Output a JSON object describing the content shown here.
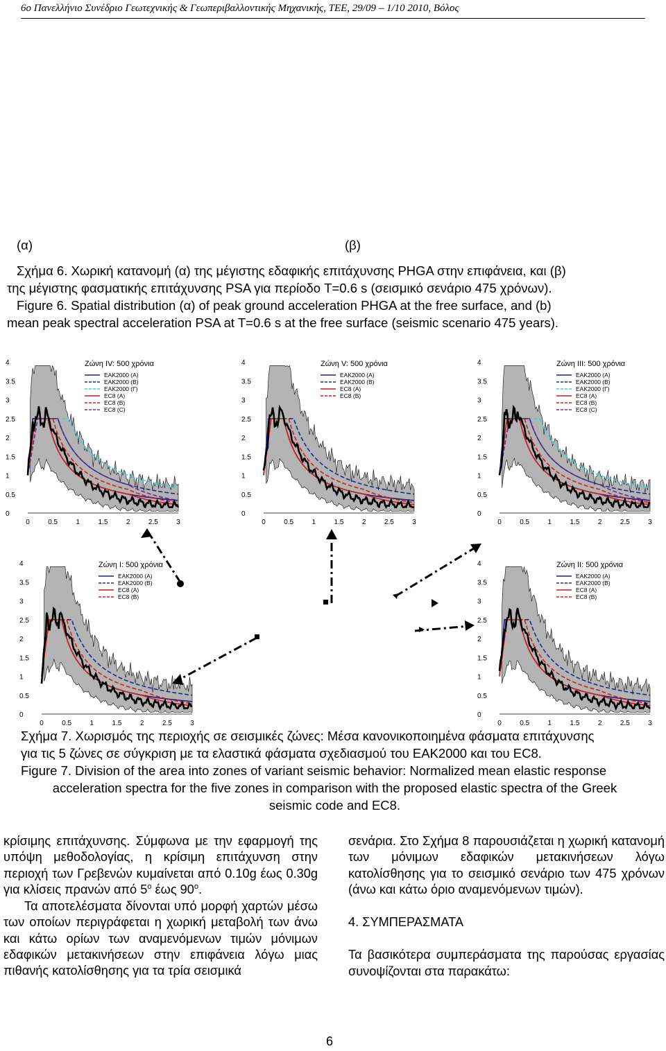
{
  "header": "6o Πανελλήνιο Συνέδριο Γεωτεχνικής & Γεωπεριβαλλοντικής Μηχανικής, ΤΕΕ, 29/09 – 1/10 2010, Βόλος",
  "fig6": {
    "label_a": "(α)",
    "label_b": "(β)",
    "caption_gr_1": "Σχήμα 6. Χωρική κατανομή (α) της μέγιστης εδαφικής επιτάχυνσης PHGA στην επιφάνεια, και (β)",
    "caption_gr_2": "της μέγιστης φασματικής επιτάχυνσης PSA για περίοδο T=0.6 s (σεισμικό σενάριο 475 χρόνων).",
    "caption_en_1": "Figure 6. Spatial distribution (α) of peak ground acceleration PHGA at the free surface, and (b)",
    "caption_en_2": "mean peak spectral acceleration PSA at T=0.6 s at the free surface (seismic scenario 475 years)."
  },
  "colors": {
    "black": "#000000",
    "navy": "#1a1a8a",
    "dark_blue_dash": "#1a2a8a",
    "cyan": "#33d6e8",
    "red": "#d41c1c",
    "red_dash": "#d41c1c",
    "purple_dash": "#6a2a8a",
    "band": "#b4b4b4"
  },
  "chart_data": [
    {
      "type": "line",
      "title": "Ζώνη IV: 500 χρόνια",
      "xlabel": "",
      "ylabel": "",
      "xlim": [
        0,
        3
      ],
      "ylim": [
        0,
        4
      ],
      "x_ticks": [
        "0",
        "0.5",
        "1",
        "1.5",
        "2",
        "2.5",
        "3"
      ],
      "y_ticks": [
        "0",
        "0.5",
        "1",
        "1.5",
        "2",
        "2.5",
        "3",
        "3.5",
        "4"
      ],
      "series": [
        {
          "name": "EAK2000 (A)",
          "style": "navy-solid"
        },
        {
          "name": "EAK2000 (B)",
          "style": "navy-dash"
        },
        {
          "name": "EAK2000 (Γ)",
          "style": "cyan-dash"
        },
        {
          "name": "EC8 (A)",
          "style": "red-solid"
        },
        {
          "name": "EC8 (B)",
          "style": "red-dash"
        },
        {
          "name": "EC8 (C)",
          "style": "purple-dash"
        }
      ]
    },
    {
      "type": "line",
      "title": "Ζώνη V: 500 χρόνια",
      "xlabel": "",
      "ylabel": "",
      "xlim": [
        0,
        3
      ],
      "ylim": [
        0,
        4
      ],
      "x_ticks": [
        "0",
        "0.5",
        "1",
        "1.5",
        "2",
        "2.5",
        "3"
      ],
      "y_ticks": [
        "0",
        "0.5",
        "1",
        "1.5",
        "2",
        "2.5",
        "3",
        "3.5",
        "4"
      ],
      "series": [
        {
          "name": "EAK2000 (A)",
          "style": "navy-solid"
        },
        {
          "name": "EAK2000 (B)",
          "style": "navy-dash"
        },
        {
          "name": "EC8 (A)",
          "style": "red-solid"
        },
        {
          "name": "EC8 (B)",
          "style": "red-dash"
        }
      ]
    },
    {
      "type": "line",
      "title": "Ζώνη III: 500 χρόνια",
      "xlabel": "",
      "ylabel": "",
      "xlim": [
        0,
        3
      ],
      "ylim": [
        0,
        4
      ],
      "x_ticks": [
        "0",
        "0.5",
        "1",
        "1.5",
        "2",
        "2.5",
        "3"
      ],
      "y_ticks": [
        "0",
        "0.5",
        "1",
        "1.5",
        "2",
        "2.5",
        "3",
        "3.5",
        "4"
      ],
      "series": [
        {
          "name": "EAK2000 (A)",
          "style": "navy-solid"
        },
        {
          "name": "EAK2000 (B)",
          "style": "navy-dash"
        },
        {
          "name": "EAK2000 (Γ)",
          "style": "cyan-dash"
        },
        {
          "name": "EC8 (A)",
          "style": "red-solid"
        },
        {
          "name": "EC8 (B)",
          "style": "red-dash"
        },
        {
          "name": "EC8 (C)",
          "style": "purple-dash"
        }
      ]
    },
    {
      "type": "line",
      "title": "Ζώνη I: 500 χρόνια",
      "xlabel": "",
      "ylabel": "",
      "xlim": [
        0,
        3
      ],
      "ylim": [
        0,
        4
      ],
      "x_ticks": [
        "0",
        "0.5",
        "1",
        "1.5",
        "2",
        "2.5",
        "3"
      ],
      "y_ticks": [
        "0",
        "0.5",
        "1",
        "1.5",
        "2",
        "2.5",
        "3",
        "3.5",
        "4"
      ],
      "series": [
        {
          "name": "EAK2000 (A)",
          "style": "navy-solid"
        },
        {
          "name": "EAK2000 (B)",
          "style": "navy-dash"
        },
        {
          "name": "EC8 (A)",
          "style": "red-solid"
        },
        {
          "name": "EC8 (B)",
          "style": "red-dash"
        }
      ]
    },
    {
      "type": "line",
      "title": "Ζώνη II: 500 χρόνια",
      "xlabel": "",
      "ylabel": "",
      "xlim": [
        0,
        3
      ],
      "ylim": [
        0,
        4
      ],
      "x_ticks": [
        "0",
        "0.5",
        "1",
        "1.5",
        "2",
        "2.5",
        "3"
      ],
      "y_ticks": [
        "0",
        "0.5",
        "1",
        "1.5",
        "2",
        "2.5",
        "3",
        "3.5",
        "4"
      ],
      "series": [
        {
          "name": "EAK2000 (A)",
          "style": "navy-solid"
        },
        {
          "name": "EAK2000 (B)",
          "style": "navy-dash"
        },
        {
          "name": "EC8 (A)",
          "style": "red-solid"
        },
        {
          "name": "EC8 (B)",
          "style": "red-dash"
        }
      ]
    }
  ],
  "fig7": {
    "caption_gr_1": "Σχήμα 7. Χωρισμός της περιοχής σε σεισμικές ζώνες: Μέσα κανονικοποιημένα φάσματα επιτάχυνσης",
    "caption_gr_2": "για τις 5 ζώνες σε σύγκριση με τα ελαστικά φάσματα σχεδιασμού του ΕΑΚ2000 και του EC8.",
    "caption_en_1": "Figure 7. Division of the area into zones of variant seismic behavior: Normalized mean elastic response",
    "caption_en_2": "acceleration spectra for the five zones in comparison with the proposed elastic spectra of the Greek",
    "caption_en_3": "seismic code and EC8."
  },
  "body": {
    "left_1": "κρίσιμης επιτάχυνσης. Σύμφωνα με την εφαρμογή της υπόψη μεθοδολογίας, η κρίσιμη επιτάχυνση στην περιοχή των Γρεβενών κυμαίνεται από 0.10g έως 0.30g για κλίσεις πρανών από 5",
    "left_1_sup1": "ο",
    "left_1_mid": " έως 90",
    "left_1_sup2": "ο",
    "left_1_end": ".",
    "left_2": "Τα αποτελέσματα δίνονται υπό μορφή χαρτών μέσω των οποίων περιγράφεται η χωρική μεταβολή των άνω και κάτω ορίων των αναμενόμενων τιμών μόνιμων εδαφικών μετακινήσεων στην επιφάνεια λόγω μιας πιθανής κατολίσθησης για τα τρία σεισμικά",
    "right_1": "σενάρια. Στο Σχήμα 8 παρουσιάζεται η χωρική κατανομή των μόνιμων εδαφικών μετακινήσεων λόγω κατολίσθησης για το σεισμικό σενάριο των 475 χρόνων (άνω και κάτω όριο αναμενόμενων τιμών).",
    "right_heading": "4. ΣΥΜΠΕΡΑΣΜΑΤΑ",
    "right_2": "Τα βασικότερα συμπεράσματα της παρούσας εργασίας συνοψίζονται στα παρακάτω:"
  },
  "page_number": "6"
}
